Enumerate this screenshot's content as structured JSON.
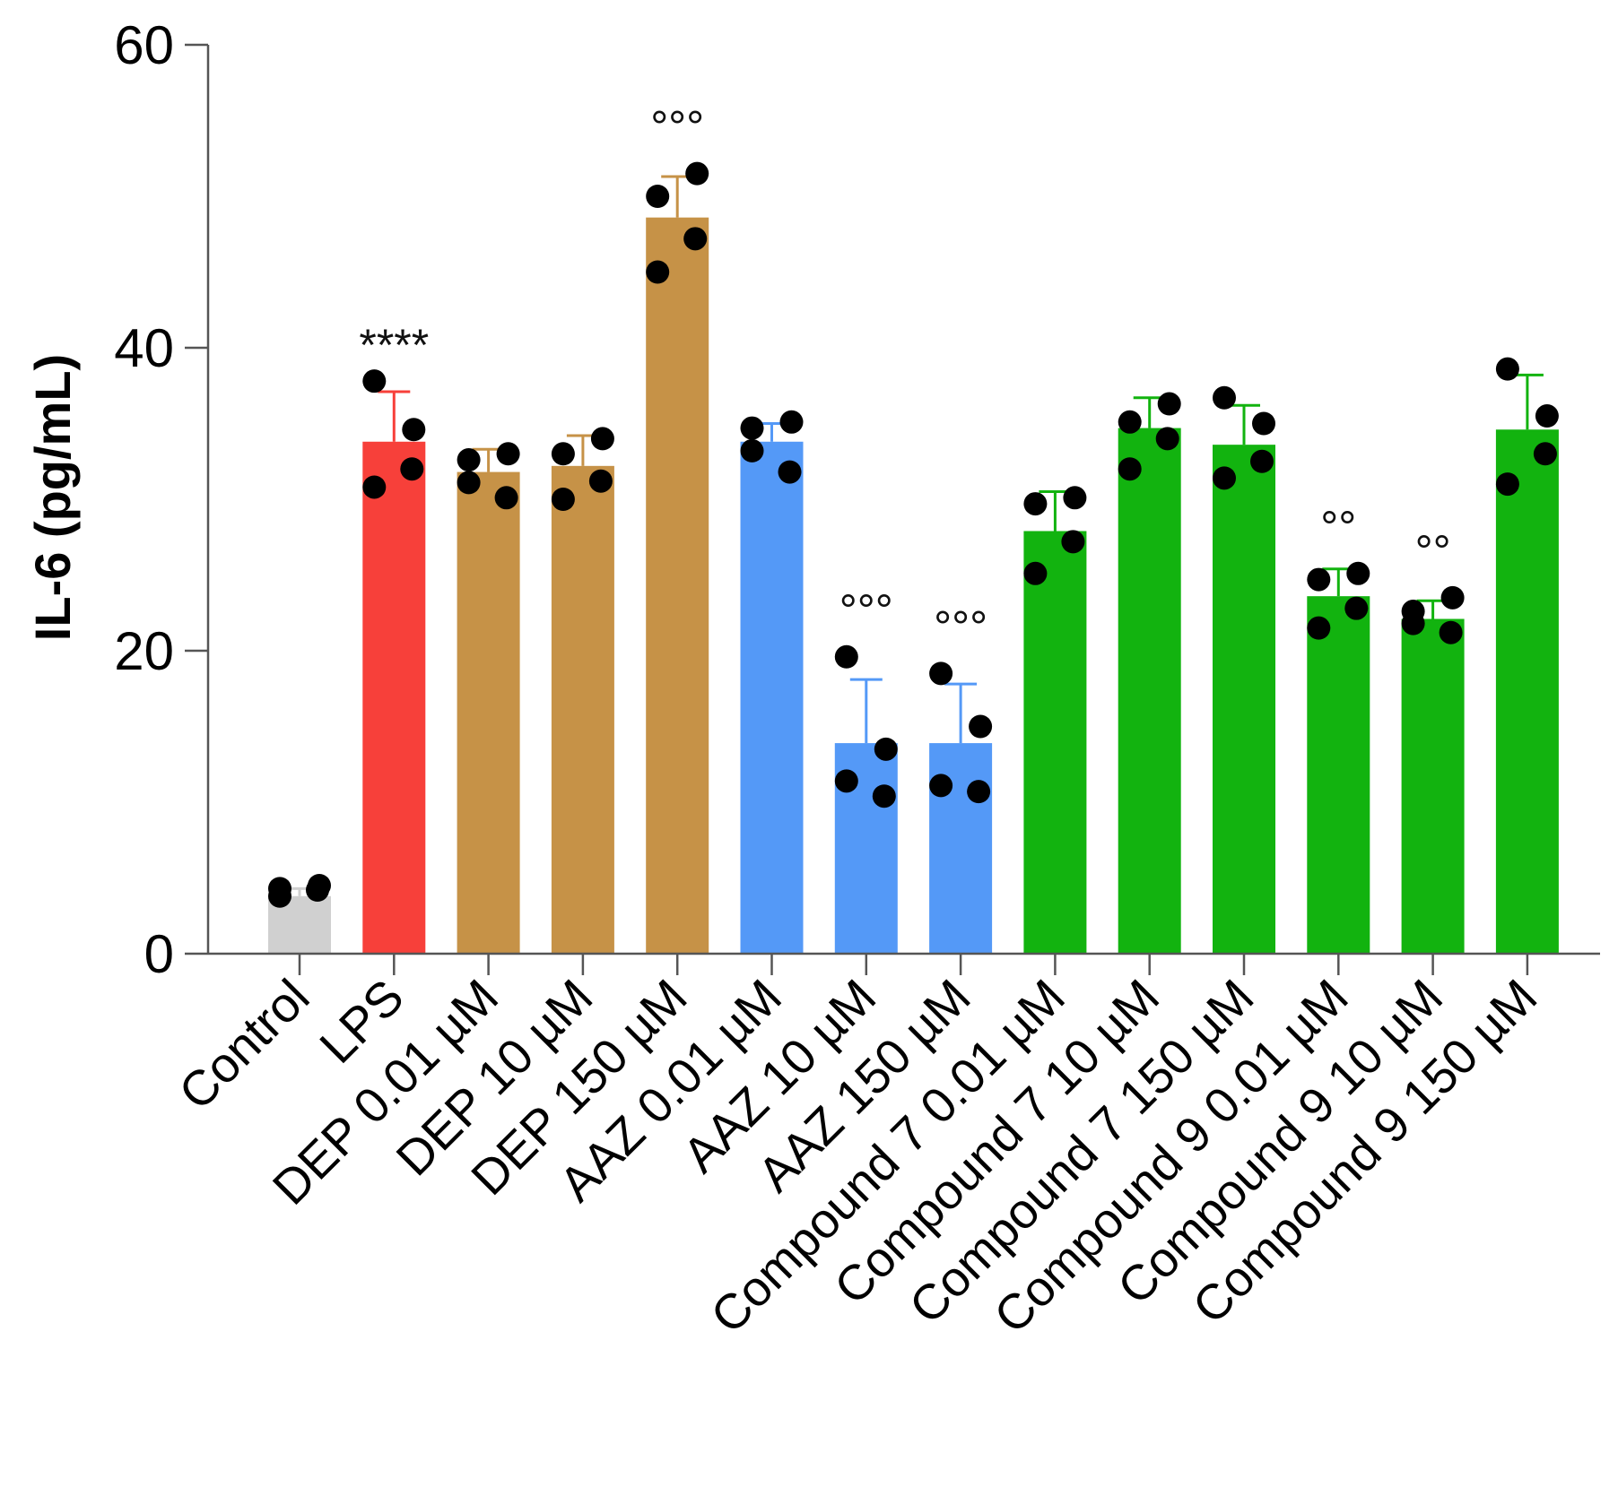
{
  "chart_data": {
    "type": "bar",
    "title": "",
    "xlabel": "",
    "ylabel": "IL-6 (pg/mL)",
    "ylim": [
      0,
      60
    ],
    "yticks": [
      0,
      20,
      40,
      60
    ],
    "ytick_labels": [
      "0",
      "20",
      "40",
      "60"
    ],
    "grid": false,
    "legend": null,
    "categories": [
      "Control",
      "LPS",
      "DEP 0.01 µM",
      "DEP 10 µM",
      "DEP 150 µM",
      "AAZ 0.01 µM",
      "AAZ 10 µM",
      "AAZ 150 µM",
      "Compound 7 0.01 µM",
      "Compound 7 10 µM",
      "Compound 7 150 µM",
      "Compound 9 0.01 µM",
      "Compound 9 10 µM",
      "Compound 9 150 µM"
    ],
    "values": [
      3.8,
      33.8,
      31.8,
      32.2,
      48.6,
      33.8,
      13.9,
      13.9,
      27.9,
      34.7,
      33.6,
      23.6,
      22.1,
      34.6
    ],
    "errors": [
      0.5,
      3.3,
      1.5,
      2.0,
      2.7,
      1.2,
      4.2,
      3.9,
      2.6,
      2.0,
      2.6,
      1.8,
      1.2,
      3.6
    ],
    "colors": [
      "#d0d0d0",
      "#f7403a",
      "#c69247",
      "#c69247",
      "#c69247",
      "#5499f7",
      "#5499f7",
      "#5499f7",
      "#12b30f",
      "#12b30f",
      "#12b30f",
      "#12b30f",
      "#12b30f",
      "#12b30f"
    ],
    "points": [
      [
        3.8,
        4.5,
        4.2,
        4.3
      ],
      [
        37.8,
        34.6,
        32.0,
        30.8
      ],
      [
        32.6,
        33.0,
        30.1,
        31.1
      ],
      [
        33.0,
        34.0,
        31.2,
        30.0
      ],
      [
        50.0,
        51.5,
        47.2,
        45.0
      ],
      [
        34.7,
        35.1,
        31.8,
        33.2
      ],
      [
        19.6,
        13.5,
        10.4,
        11.4
      ],
      [
        18.5,
        15.0,
        10.7,
        11.1
      ],
      [
        29.7,
        30.1,
        27.2,
        25.1
      ],
      [
        35.1,
        36.3,
        34.0,
        32.0
      ],
      [
        36.7,
        35.0,
        32.5,
        31.4
      ],
      [
        24.7,
        25.1,
        22.8,
        21.5
      ],
      [
        22.6,
        23.5,
        21.2,
        21.8
      ],
      [
        38.6,
        35.5,
        33.0,
        31.0
      ]
    ],
    "annotations": [
      {
        "category": "LPS",
        "text": "****"
      },
      {
        "category": "DEP 150 µM",
        "text": "°°°"
      },
      {
        "category": "AAZ 10 µM",
        "text": "°°°"
      },
      {
        "category": "AAZ 150 µM",
        "text": "°°°"
      },
      {
        "category": "Compound 9 0.01 µM",
        "text": "°°"
      },
      {
        "category": "Compound 9 10 µM",
        "text": "°°"
      }
    ]
  }
}
